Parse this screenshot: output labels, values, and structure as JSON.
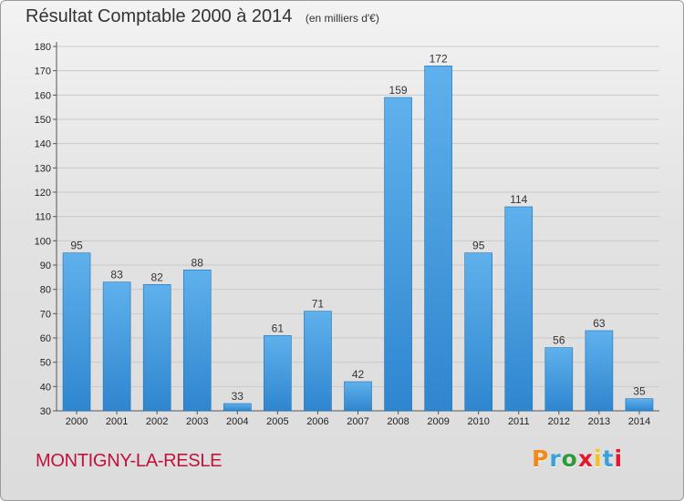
{
  "header": {
    "title": "Résultat Comptable 2000 à 2014",
    "subtitle": "(en milliers d'€)"
  },
  "footer": {
    "commune": "MONTIGNY-LA-RESLE",
    "logo_letters": [
      "P",
      "r",
      "o",
      "x",
      "i",
      "t",
      "i"
    ],
    "logo_colors": [
      "#f08a1a",
      "#3aa0dc",
      "#2e9a3c",
      "#e6162d",
      "#f6c21a",
      "#3aa0dc",
      "#e6162d"
    ]
  },
  "colors": {
    "bar_top": "#5fb1ec",
    "bar_bottom": "#2f86cf",
    "bar_edge": "#1e70b5"
  },
  "chart_data": {
    "type": "bar",
    "title": "Résultat Comptable 2000 à 2014",
    "subtitle": "(en milliers d'€)",
    "xlabel": "",
    "ylabel": "",
    "categories": [
      "2000",
      "2001",
      "2002",
      "2003",
      "2004",
      "2005",
      "2006",
      "2007",
      "2008",
      "2009",
      "2010",
      "2011",
      "2012",
      "2013",
      "2014"
    ],
    "values": [
      95,
      83,
      82,
      88,
      33,
      61,
      71,
      42,
      159,
      172,
      95,
      114,
      56,
      63,
      35
    ],
    "ylim": [
      30,
      180
    ],
    "yticks": [
      30,
      40,
      50,
      60,
      70,
      80,
      90,
      100,
      110,
      120,
      130,
      140,
      150,
      160,
      170,
      180
    ],
    "grid": true
  }
}
